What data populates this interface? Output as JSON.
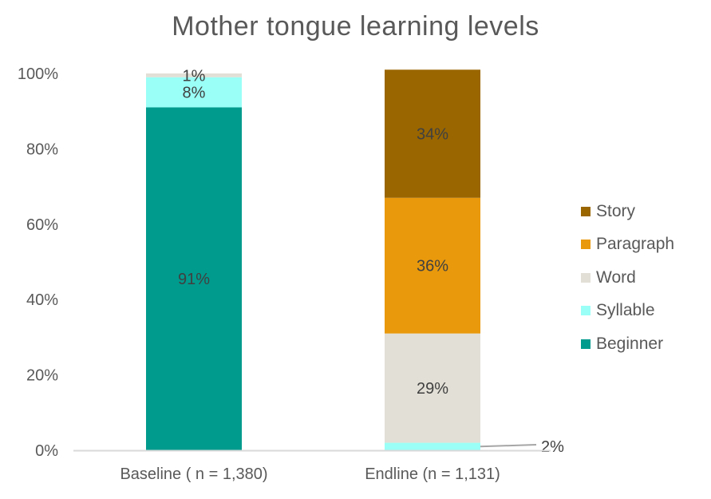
{
  "chart_data": {
    "type": "bar",
    "stacked": true,
    "title": "Mother tongue learning levels",
    "categories": [
      "Baseline ( n = 1,380)",
      "Endline (n = 1,131)"
    ],
    "y_ticks": [
      "0%",
      "20%",
      "40%",
      "60%",
      "80%",
      "100%"
    ],
    "ylim": [
      0,
      100
    ],
    "grid": false,
    "legend_position": "right",
    "series": [
      {
        "name": "Beginner",
        "color": "#009B8D",
        "values": [
          91,
          0
        ],
        "labels": [
          "91%",
          ""
        ]
      },
      {
        "name": "Syllable",
        "color": "#99FFF7",
        "values": [
          8,
          2
        ],
        "labels": [
          "8%",
          "2%"
        ]
      },
      {
        "name": "Word",
        "color": "#E2E0D6",
        "values": [
          1,
          29
        ],
        "labels": [
          "1%",
          "29%"
        ]
      },
      {
        "name": "Paragraph",
        "color": "#E8990C",
        "values": [
          0,
          36
        ],
        "labels": [
          "",
          "36%"
        ]
      },
      {
        "name": "Story",
        "color": "#996600",
        "values": [
          0,
          34
        ],
        "labels": [
          "",
          "34%"
        ]
      }
    ],
    "legend_order": [
      "Story",
      "Paragraph",
      "Word",
      "Syllable",
      "Beginner"
    ]
  }
}
